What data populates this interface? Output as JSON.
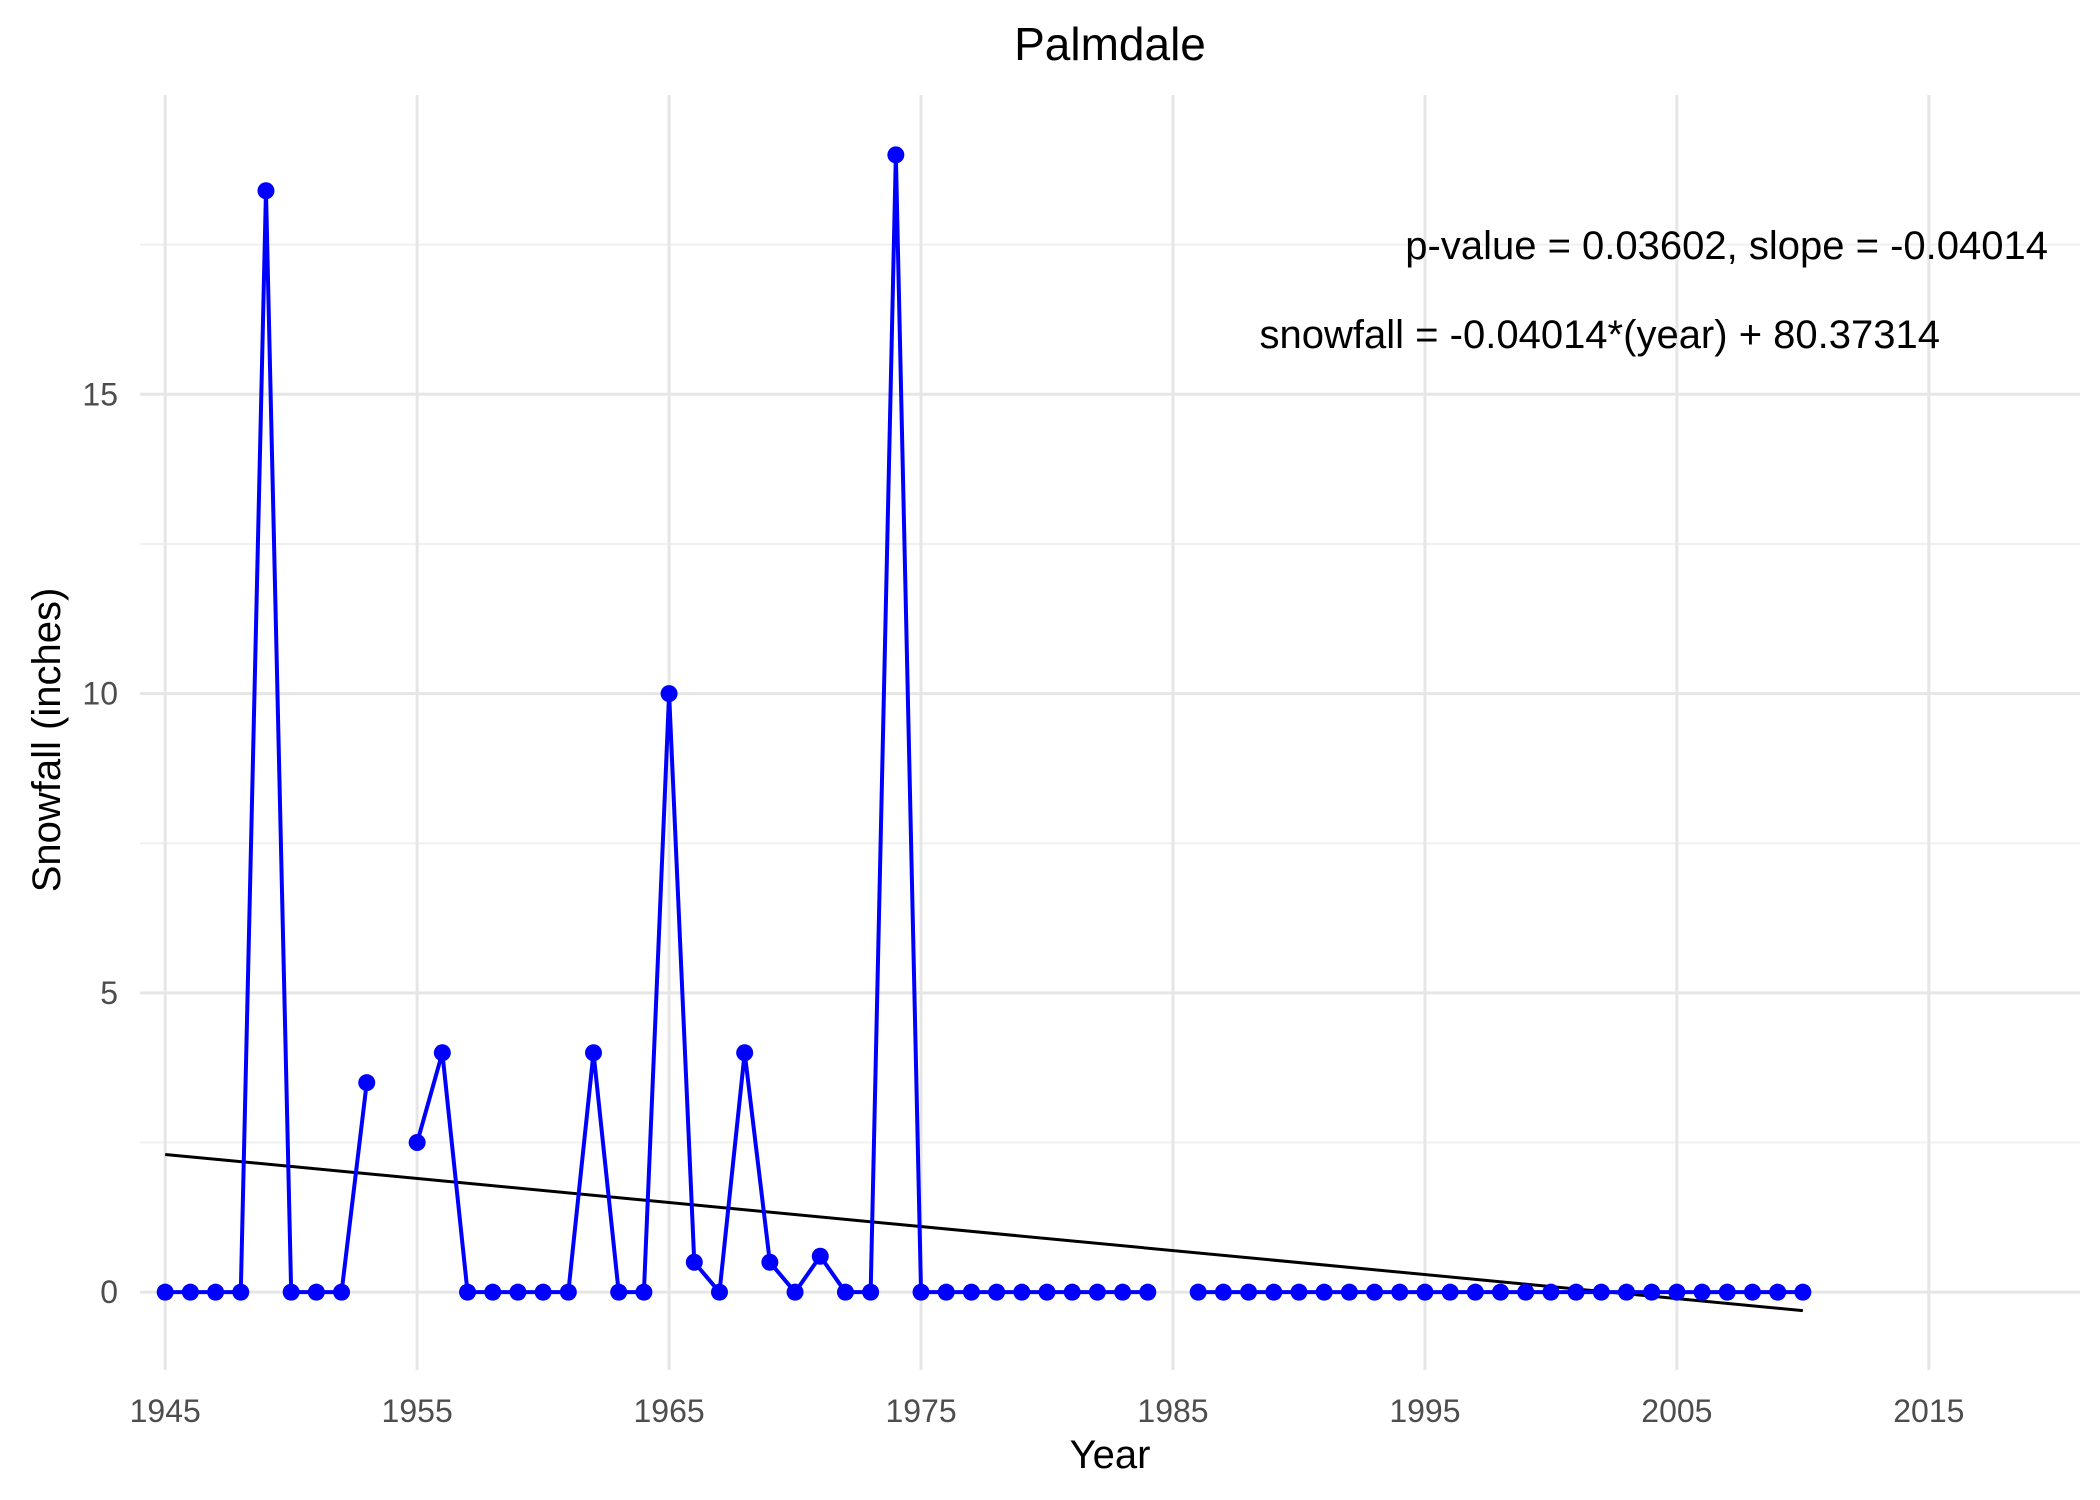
{
  "chart_data": {
    "type": "line",
    "title": "Palmdale",
    "xlabel": "Year",
    "ylabel": "Snowfall (inches)",
    "xlim": [
      1944,
      2021
    ],
    "ylim": [
      -1.3,
      20
    ],
    "x_ticks": [
      1945,
      1955,
      1965,
      1975,
      1985,
      1995,
      2005,
      2015
    ],
    "y_ticks": [
      0,
      5,
      10,
      15
    ],
    "grid": true,
    "colors": {
      "series": "#0000ff",
      "trend": "#000000"
    },
    "series": [
      {
        "x": [
          1945,
          1946,
          1947,
          1948,
          1949,
          1950,
          1951,
          1952,
          1953,
          1954,
          1955,
          1956,
          1957,
          1958,
          1959,
          1960,
          1961,
          1962,
          1963,
          1964,
          1965,
          1966,
          1967,
          1968,
          1969,
          1970,
          1971,
          1972,
          1973,
          1974,
          1975,
          1976,
          1977,
          1978,
          1979,
          1980,
          1981,
          1982,
          1983,
          1984,
          1985,
          1986,
          1987,
          1988,
          1989,
          1990,
          1991,
          1992,
          1993,
          1994,
          1995,
          1996,
          1997,
          1998,
          1999,
          2000,
          2001,
          2002,
          2003,
          2004,
          2005,
          2006,
          2007,
          2008,
          2009,
          2010
        ],
        "y": [
          0,
          0,
          0,
          0,
          18.4,
          0,
          0,
          0,
          3.5,
          null,
          2.5,
          4,
          0,
          0,
          0,
          0,
          0,
          4,
          0,
          0,
          10,
          0.5,
          0,
          4,
          0.5,
          0,
          0.6,
          0,
          0,
          19,
          0,
          0,
          0,
          0,
          0,
          0,
          0,
          0,
          0,
          0,
          null,
          0,
          0,
          0,
          0,
          0,
          0,
          0,
          0,
          0,
          0,
          0,
          0,
          0,
          0,
          0,
          0,
          0,
          0,
          0,
          0,
          0,
          0,
          0,
          0,
          0
        ]
      }
    ],
    "trend": {
      "slope": -0.04014,
      "intercept": 80.37314,
      "x_range": [
        1945,
        2010
      ]
    },
    "annotations": [
      "p-value = 0.03602, slope = -0.04014",
      "snowfall = -0.04014*(year) + 80.37314"
    ]
  }
}
